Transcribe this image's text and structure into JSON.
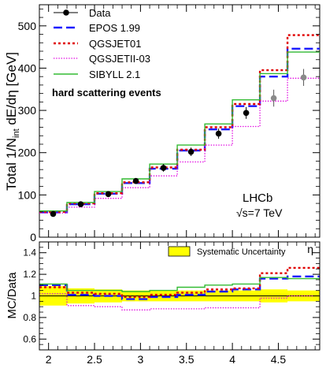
{
  "chart_data": [
    {
      "type": "line",
      "panel": "main",
      "title": "",
      "xlabel": "",
      "ylabel": "Total 1/N_int dE/dη [GeV]",
      "ylabel_parts": {
        "main": "Total 1/N",
        "sub": "int",
        "tail": " dE/dη [GeV]"
      },
      "xlim": [
        1.9,
        4.95
      ],
      "ylim": [
        0,
        550
      ],
      "yticks": [
        0,
        100,
        200,
        300,
        400,
        500
      ],
      "ytick_labels": [
        "0",
        "100",
        "200",
        "300",
        "400",
        "500"
      ],
      "bin_edges": [
        1.9,
        2.2,
        2.5,
        2.8,
        3.1,
        3.4,
        3.7,
        4.0,
        4.3,
        4.6,
        4.95
      ],
      "series": [
        {
          "name": "EPOS 1.99",
          "style": "dash",
          "color": "#1a1aff",
          "values": [
            59,
            78,
            103,
            128,
            162,
            205,
            255,
            310,
            380,
            446
          ]
        },
        {
          "name": "QGSJET01",
          "style": "dot",
          "color": "#e00000",
          "values": [
            60,
            80,
            104,
            130,
            165,
            207,
            260,
            315,
            395,
            478
          ]
        },
        {
          "name": "QGSJETII-03",
          "style": "fine-dot",
          "color": "#e000e0",
          "values": [
            57,
            71,
            92,
            117,
            145,
            178,
            218,
            262,
            322,
            376
          ]
        },
        {
          "name": "SIBYLL 2.1",
          "style": "solid",
          "color": "#33bb33",
          "values": [
            62,
            82,
            108,
            138,
            173,
            218,
            268,
            325,
            387,
            438
          ]
        }
      ],
      "data_points": {
        "name": "Data",
        "x": [
          2.05,
          2.35,
          2.65,
          2.95,
          3.25,
          3.55,
          3.85,
          4.15,
          4.45,
          4.775
        ],
        "y": [
          55,
          78,
          102,
          133,
          164,
          202,
          245,
          294,
          329,
          378
        ],
        "yerr": [
          4,
          5,
          6,
          7,
          9,
          10,
          12,
          14,
          20,
          20
        ],
        "grey_from_index": 8
      },
      "legend": {
        "placement": "top-left",
        "entries": [
          "Data",
          "EPOS 1.99",
          "QGSJET01",
          "QGSJETII-03",
          "SIBYLL 2.1"
        ],
        "note": "hard scattering events"
      },
      "annotations": [
        "LHCb",
        "√s=7 TeV"
      ]
    },
    {
      "type": "line",
      "panel": "ratio",
      "title": "",
      "xlabel": "η",
      "ylabel": "MC/Data",
      "xlim": [
        1.9,
        4.95
      ],
      "ylim": [
        0.5,
        1.5
      ],
      "yticks": [
        0.6,
        0.8,
        1.0,
        1.2,
        1.4
      ],
      "ytick_labels": [
        "0.6",
        "0.8",
        "1",
        "1.2",
        "1.4"
      ],
      "xticks": [
        2,
        2.5,
        3,
        3.5,
        4,
        4.5
      ],
      "xtick_labels": [
        "2",
        "2.5",
        "3",
        "3.5",
        "4",
        "4.5"
      ],
      "bin_edges": [
        1.9,
        2.2,
        2.5,
        2.8,
        3.1,
        3.4,
        3.7,
        4.0,
        4.3,
        4.6,
        4.95
      ],
      "band": {
        "name": "Systematic Uncertainty",
        "color": "#ffff00",
        "upper": [
          1.09,
          1.07,
          1.06,
          1.05,
          1.05,
          1.05,
          1.05,
          1.05,
          1.06,
          1.05
        ],
        "lower": [
          0.91,
          0.93,
          0.94,
          0.95,
          0.95,
          0.95,
          0.95,
          0.95,
          0.94,
          0.95
        ]
      },
      "series": [
        {
          "name": "EPOS 1.99",
          "style": "dash",
          "color": "#1a1aff",
          "values": [
            1.1,
            1.01,
            1.0,
            0.97,
            0.99,
            1.01,
            1.04,
            1.06,
            1.16,
            1.18
          ]
        },
        {
          "name": "QGSJET01",
          "style": "dot",
          "color": "#e00000",
          "values": [
            1.08,
            1.03,
            1.02,
            0.99,
            1.01,
            1.03,
            1.06,
            1.07,
            1.21,
            1.26
          ]
        },
        {
          "name": "QGSJETII-03",
          "style": "fine-dot",
          "color": "#e000e0",
          "values": [
            1.02,
            0.91,
            0.9,
            0.87,
            0.88,
            0.88,
            0.89,
            0.89,
            0.98,
            1.0
          ]
        },
        {
          "name": "SIBYLL 2.1",
          "style": "solid",
          "color": "#33bb33",
          "values": [
            1.11,
            1.05,
            1.05,
            1.04,
            1.05,
            1.08,
            1.1,
            1.11,
            1.17,
            1.16
          ]
        }
      ],
      "legend": {
        "placement": "top-right",
        "entries": [
          "Systematic Uncertainty"
        ]
      }
    }
  ]
}
